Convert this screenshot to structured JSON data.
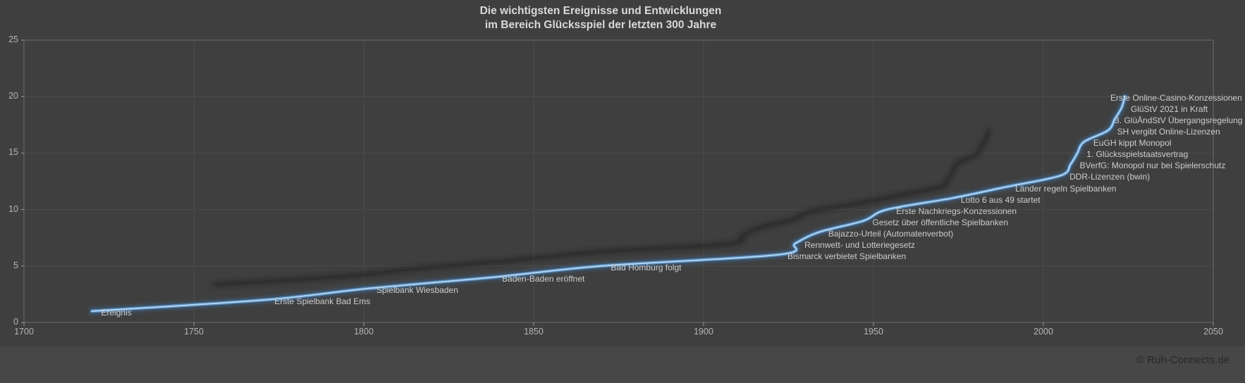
{
  "title": {
    "line1": "Die wichtigsten Ereignisse und Entwicklungen",
    "line2": "im Bereich Glücksspiel der letzten 300 Jahre"
  },
  "footer": {
    "copyright": "© Ruh-Connects.de"
  },
  "chart_data": {
    "type": "line",
    "series_name": "Ereignis",
    "x": [
      1720,
      1771,
      1801,
      1838,
      1870,
      1922,
      1927,
      1934,
      1947,
      1954,
      1973,
      1989,
      2005,
      2008,
      2010,
      2012,
      2019,
      2021,
      2023,
      2024
    ],
    "values": [
      1,
      2,
      3,
      4,
      5,
      6,
      7,
      8,
      9,
      10,
      11,
      12,
      13,
      14,
      15,
      16,
      17,
      18,
      19,
      20
    ],
    "labels": [
      "Ereignis",
      "Erste Spielbank Bad Ems",
      "Spielbank Wiesbaden",
      "Baden-Baden eröffnet",
      "Bad Homburg folgt",
      "Bismarck verbietet Spielbanken",
      "Rennwett- und Lotteriegesetz",
      "Bajazzo-Urteil (Automatenverbot)",
      "Gesetz über öffentliche Spielbanken",
      "Erste Nachkriegs-Konzessionen",
      "Lotto 6 aus 49 startet",
      "Länder regeln Spielbanken",
      "DDR-Lizenzen (bwin)",
      "BVerfG: Monopol nur bei Spielerschutz",
      "1. Glücksspielstaatsvertrag",
      "EuGH kippt Monopol",
      "SH vergibt Online-Lizenzen",
      "3. GlüÄndStV Übergangsregelung",
      "GlüStV 2021 in Kraft",
      "Erste Online-Casino-Konzessionen"
    ],
    "xlim": [
      1700,
      2050
    ],
    "ylim": [
      0,
      25
    ],
    "x_ticks": [
      1700,
      1750,
      1800,
      1850,
      1900,
      1950,
      2000,
      2050
    ],
    "y_ticks": [
      0,
      5,
      10,
      15,
      20,
      25
    ],
    "grid": true,
    "legend": "none",
    "colors": {
      "background": "#3f3f3f",
      "plot_border": "#6e6e6e",
      "gridline": "#4c4c4c",
      "line_core": "#b5d5ef",
      "line_glow": "#5b9bd5",
      "line_glow_outer": "#3e6e9e",
      "shadow": "#232323",
      "label_text": "#cdcdcd",
      "tick_text": "#b5b5b5"
    }
  }
}
